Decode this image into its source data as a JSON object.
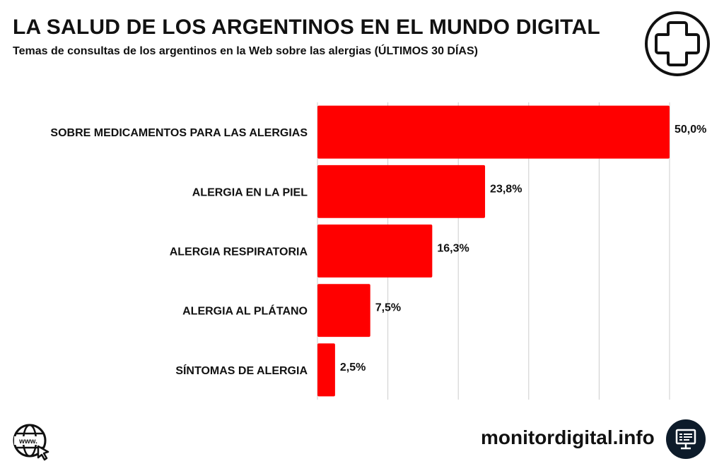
{
  "header": {
    "title": "LA SALUD DE LOS ARGENTINOS EN EL MUNDO DIGITAL",
    "subtitle": "Temas de consultas de los argentinos en la Web sobre las alergias (ÚLTIMOS 30 DÍAS)"
  },
  "footer": {
    "brand": "monitordigital.info",
    "web_icon_text": "www."
  },
  "colors": {
    "bar": "#ff0000",
    "grid": "#cccccc",
    "text": "#111111"
  },
  "chart_data": {
    "type": "bar",
    "orientation": "horizontal",
    "title": "LA SALUD DE LOS ARGENTINOS EN EL MUNDO DIGITAL",
    "subtitle": "Temas de consultas de los argentinos en la Web sobre las alergias (ÚLTIMOS 30 DÍAS)",
    "categories": [
      "SOBRE MEDICAMENTOS PARA LAS ALERGIAS",
      "ALERGIA EN LA PIEL",
      "ALERGIA RESPIRATORIA",
      "ALERGIA AL PLÁTANO",
      "SÍNTOMAS DE ALERGIA"
    ],
    "values": [
      50.0,
      23.8,
      16.3,
      7.5,
      2.5
    ],
    "value_labels": [
      "50,0%",
      "23,8%",
      "16,3%",
      "7,5%",
      "2,5%"
    ],
    "xlim": [
      0,
      50
    ],
    "grid_step": 10,
    "grid": true,
    "xlabel": "",
    "ylabel": ""
  }
}
